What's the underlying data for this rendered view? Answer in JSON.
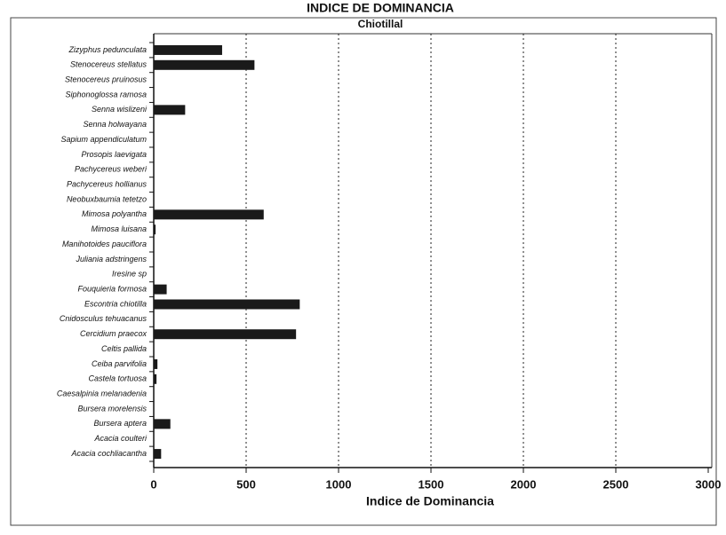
{
  "chart_data": {
    "type": "bar",
    "orientation": "horizontal",
    "title": "INDICE DE DOMINANCIA",
    "subtitle": "Chiotillal",
    "xlabel": "Indice de Dominancia",
    "categories": [
      "Zizyphus pedunculata",
      "Stenocereus stellatus",
      "Stenocereus pruinosus",
      "Siphonoglossa ramosa",
      "Senna wislizeni",
      "Senna holwayana",
      "Sapium appendiculatum",
      "Prosopis laevigata",
      "Pachycereus weberi",
      "Pachycereus hollianus",
      "Neobuxbaumia tetetzo",
      "Mimosa polyantha",
      "Mimosa luisana",
      "Manihotoides pauciflora",
      "Juliania adstringens",
      "Iresine sp",
      "Fouquieria formosa",
      "Escontria chiotilla",
      "Cnidosculus tehuacanus",
      "Cercidium praecox",
      "Celtis pallida",
      "Ceiba parvifolia",
      "Castela tortuosa",
      "Caesalpinia melanadenia",
      "Bursera morelensis",
      "Bursera aptera",
      "Acacia coulteri",
      "Acacia cochliacantha"
    ],
    "values": [
      370,
      545,
      0,
      0,
      170,
      0,
      0,
      0,
      0,
      0,
      0,
      595,
      10,
      0,
      0,
      0,
      70,
      790,
      0,
      770,
      0,
      20,
      15,
      0,
      0,
      90,
      0,
      40
    ],
    "color": "#1a1a1a",
    "xlim": [
      0,
      3000
    ],
    "xticks": [
      0,
      500,
      1000,
      1500,
      2000,
      2500,
      3000
    ],
    "grid": true
  }
}
